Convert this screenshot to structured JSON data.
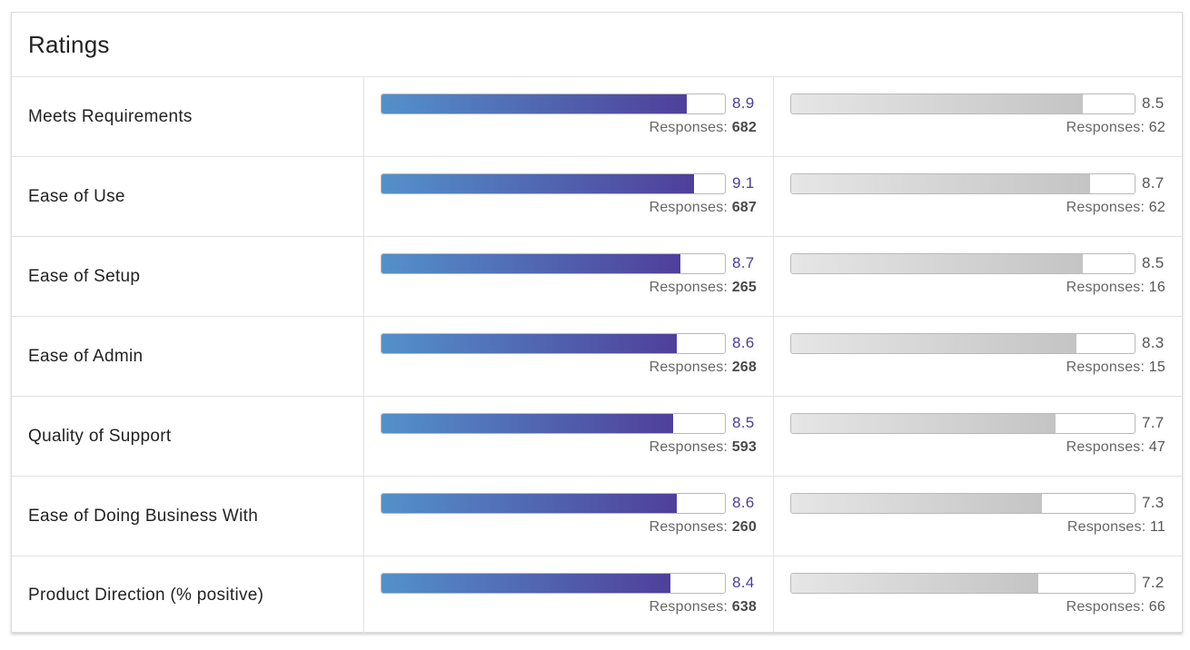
{
  "title": "Ratings",
  "responses_label": "Responses: ",
  "max_score": 10,
  "colors": {
    "primary_bar_start": "#5391cb",
    "primary_bar_end": "#4f3f9a",
    "primary_score": "#4b3f9b",
    "secondary_bar_start": "#e6e6e6",
    "secondary_bar_end": "#c4c4c4"
  },
  "ratings": [
    {
      "label": "Meets Requirements",
      "primary": {
        "score": "8.9",
        "responses": "682"
      },
      "secondary": {
        "score": "8.5",
        "responses": "62"
      }
    },
    {
      "label": "Ease of Use",
      "primary": {
        "score": "9.1",
        "responses": "687"
      },
      "secondary": {
        "score": "8.7",
        "responses": "62"
      }
    },
    {
      "label": "Ease of Setup",
      "primary": {
        "score": "8.7",
        "responses": "265"
      },
      "secondary": {
        "score": "8.5",
        "responses": "16"
      }
    },
    {
      "label": "Ease of Admin",
      "primary": {
        "score": "8.6",
        "responses": "268"
      },
      "secondary": {
        "score": "8.3",
        "responses": "15"
      }
    },
    {
      "label": "Quality of Support",
      "primary": {
        "score": "8.5",
        "responses": "593"
      },
      "secondary": {
        "score": "7.7",
        "responses": "47"
      }
    },
    {
      "label": "Ease of Doing Business With",
      "primary": {
        "score": "8.6",
        "responses": "260"
      },
      "secondary": {
        "score": "7.3",
        "responses": "11"
      }
    },
    {
      "label": "Product Direction (% positive)",
      "primary": {
        "score": "8.4",
        "responses": "638"
      },
      "secondary": {
        "score": "7.2",
        "responses": "66"
      }
    }
  ]
}
